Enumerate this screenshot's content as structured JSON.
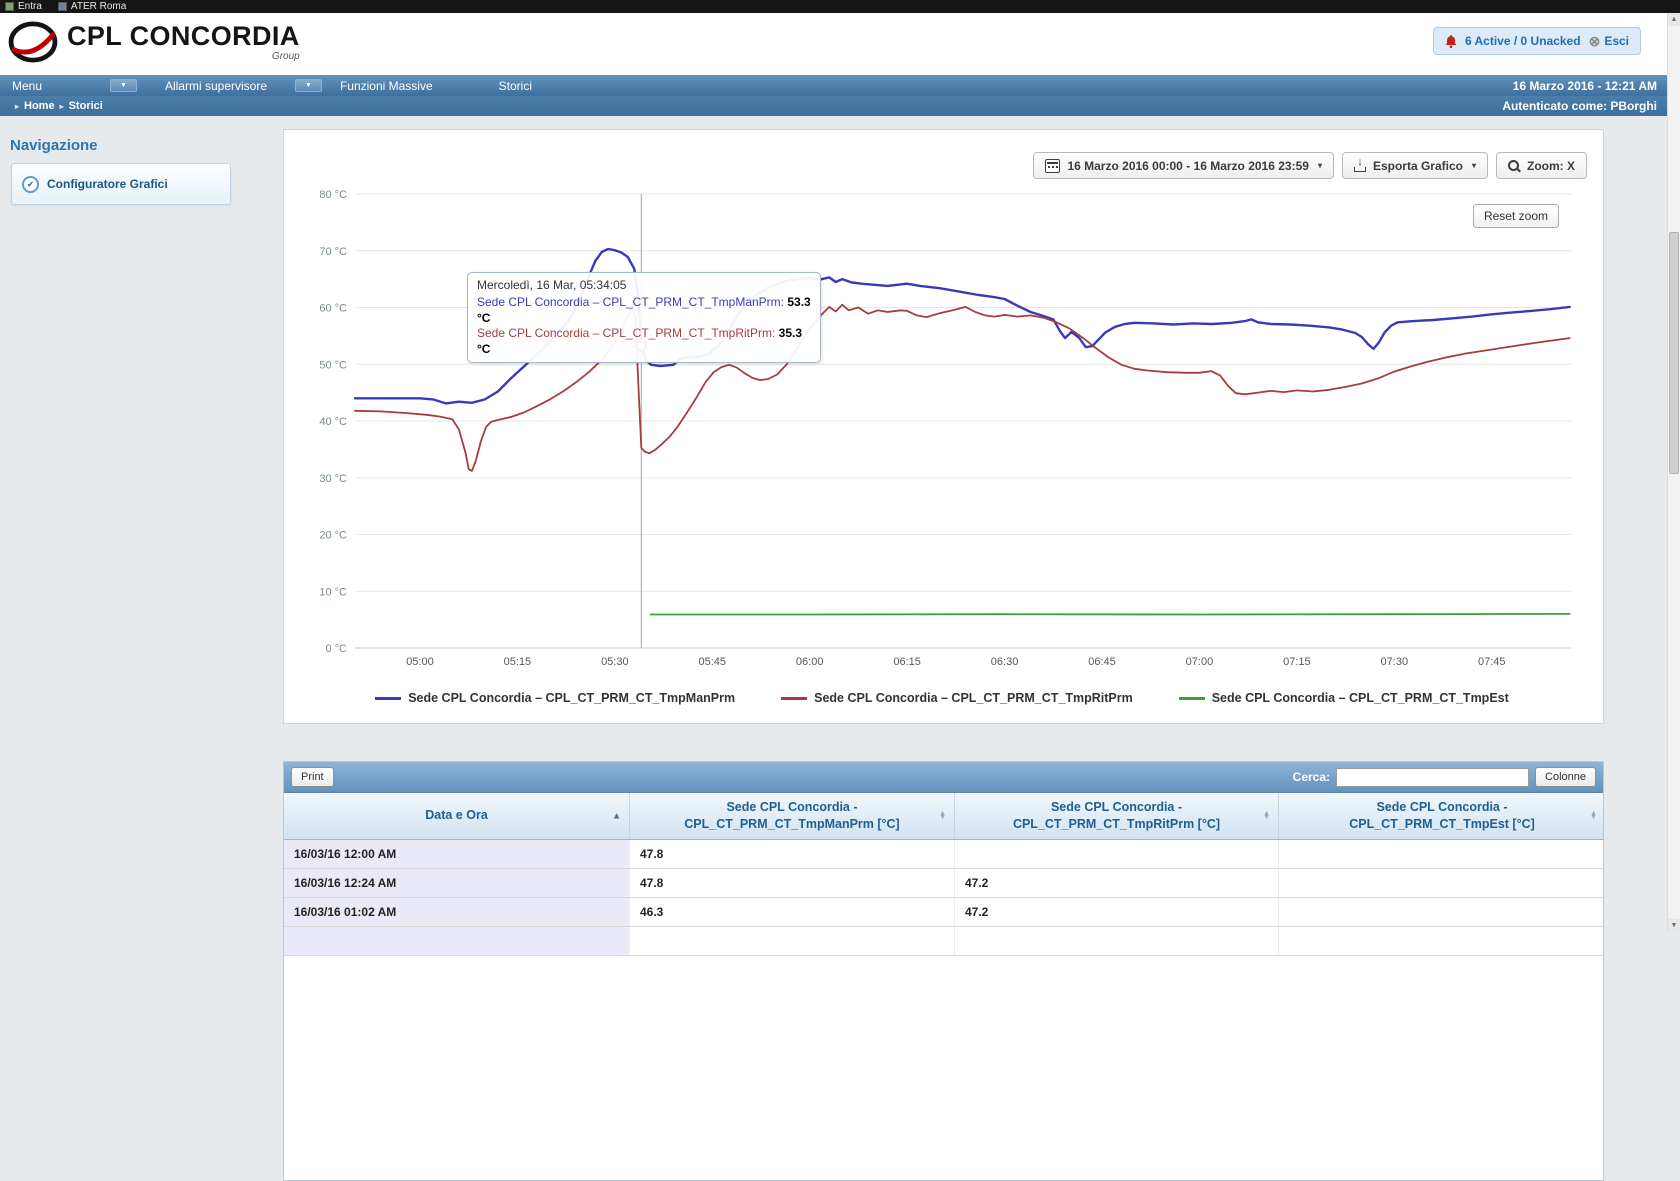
{
  "colors": {
    "accent_blue": "#1f6db5",
    "navbar_blue": "#406f9d",
    "series_blue": "#3a3ab8",
    "series_red": "#a83c3c",
    "series_green": "#3c9e3c",
    "sorted_column_bg": "#e9e9f7"
  },
  "bookmark_bar": {
    "items": [
      {
        "label": "Entra"
      },
      {
        "label": "ATER Roma"
      }
    ]
  },
  "header": {
    "brand": "CPL CONCORDIA",
    "brand_sub": "Group",
    "alarm_status": "6 Active / 0 Unacked",
    "logout_label": "Esci"
  },
  "navbar": {
    "items": [
      {
        "label": "Menu",
        "dropdown": true
      },
      {
        "label": "Allarmi supervisore",
        "dropdown": true
      },
      {
        "label": "Funzioni Massive",
        "dropdown": false
      },
      {
        "label": "Storici",
        "dropdown": false
      }
    ],
    "datetime": "16 Marzo 2016 - 12:21 AM"
  },
  "breadcrumb": {
    "items": [
      "Home",
      "Storici"
    ],
    "auth_text": "Autenticato come: PBorghi"
  },
  "sidebar": {
    "title": "Navigazione",
    "items": [
      {
        "label": "Configuratore Grafici"
      }
    ]
  },
  "chart_panel": {
    "date_range": "16 Marzo 2016 00:00 - 16 Marzo 2016 23:59",
    "export_label": "Esporta Grafico",
    "zoom_label": "Zoom: X",
    "reset_zoom_label": "Reset zoom",
    "tooltip": {
      "title": "Mercoledì, 16 Mar, 05:34:05",
      "rows": [
        {
          "name": "Sede CPL Concordia – CPL_CT_PRM_CT_TmpManPrm",
          "value": "53.3 °C",
          "color": "#3a3ab8"
        },
        {
          "name": "Sede CPL Concordia – CPL_CT_PRM_CT_TmpRitPrm",
          "value": "35.3 °C",
          "color": "#a83c3c"
        }
      ]
    }
  },
  "chart_data": {
    "type": "line",
    "ylabel": "°C",
    "ylim": [
      0,
      80
    ],
    "ytick_step": 10,
    "ytick_suffix": " °C",
    "grid": "horizontal",
    "legend_position": "bottom",
    "x_time_range": [
      "04:50",
      "07:57"
    ],
    "xticks": [
      {
        "t": 300,
        "label": "05:00"
      },
      {
        "t": 315,
        "label": "05:15"
      },
      {
        "t": 330,
        "label": "05:30"
      },
      {
        "t": 345,
        "label": "05:45"
      },
      {
        "t": 360,
        "label": "06:00"
      },
      {
        "t": 375,
        "label": "06:15"
      },
      {
        "t": 390,
        "label": "06:30"
      },
      {
        "t": 405,
        "label": "06:45"
      },
      {
        "t": 420,
        "label": "07:00"
      },
      {
        "t": 435,
        "label": "07:15"
      },
      {
        "t": 450,
        "label": "07:30"
      },
      {
        "t": 465,
        "label": "07:45"
      }
    ],
    "crosshair": {
      "t": 334.07,
      "time": "05:34:05"
    },
    "marker": {
      "series": 0,
      "t": 334.07,
      "v": 53.3
    },
    "series": [
      {
        "name": "Sede CPL Concordia – CPL_CT_PRM_CT_TmpManPrm",
        "color": "#3a3ab8",
        "width": 2.4,
        "points": [
          [
            290,
            44.0
          ],
          [
            295,
            44.0
          ],
          [
            300,
            44.0
          ],
          [
            302,
            43.8
          ],
          [
            304,
            43.1
          ],
          [
            306,
            43.4
          ],
          [
            308,
            43.2
          ],
          [
            310,
            43.8
          ],
          [
            312,
            45.2
          ],
          [
            314,
            47.5
          ],
          [
            316,
            49.6
          ],
          [
            318,
            51.7
          ],
          [
            320,
            54.0
          ],
          [
            322,
            56.4
          ],
          [
            323,
            58.0
          ],
          [
            324,
            60.0
          ],
          [
            325,
            62.5
          ],
          [
            326,
            65.5
          ],
          [
            327,
            68.2
          ],
          [
            328,
            69.8
          ],
          [
            329,
            70.3
          ],
          [
            330,
            70.1
          ],
          [
            331,
            69.7
          ],
          [
            332,
            68.9
          ],
          [
            333,
            66.8
          ],
          [
            333.6,
            62.0
          ],
          [
            334.07,
            53.3
          ],
          [
            334.8,
            50.6
          ],
          [
            335.6,
            49.9
          ],
          [
            337,
            49.7
          ],
          [
            339,
            49.9
          ],
          [
            340,
            50.9
          ],
          [
            341,
            51.2
          ],
          [
            343,
            51.3
          ],
          [
            344.5,
            51.8
          ],
          [
            346,
            53.4
          ],
          [
            347.5,
            56.0
          ],
          [
            349,
            58.8
          ],
          [
            350.5,
            60.9
          ],
          [
            352,
            62.4
          ],
          [
            353.5,
            63.4
          ],
          [
            355,
            64.1
          ],
          [
            356.5,
            64.7
          ],
          [
            358,
            65.0
          ],
          [
            360,
            65.2
          ],
          [
            361.5,
            64.9
          ],
          [
            363,
            65.3
          ],
          [
            364,
            64.5
          ],
          [
            365,
            65.0
          ],
          [
            366.5,
            64.4
          ],
          [
            368,
            64.2
          ],
          [
            370,
            64.0
          ],
          [
            372,
            63.8
          ],
          [
            375,
            64.2
          ],
          [
            377,
            63.8
          ],
          [
            380,
            63.4
          ],
          [
            383,
            62.8
          ],
          [
            386,
            62.2
          ],
          [
            388,
            61.9
          ],
          [
            390,
            61.5
          ],
          [
            392,
            60.3
          ],
          [
            394,
            59.2
          ],
          [
            396,
            58.5
          ],
          [
            397.5,
            57.9
          ],
          [
            398.5,
            55.9
          ],
          [
            399.3,
            54.6
          ],
          [
            400.3,
            55.7
          ],
          [
            401.5,
            54.6
          ],
          [
            402.5,
            53.0
          ],
          [
            403.5,
            53.2
          ],
          [
            404.5,
            54.4
          ],
          [
            405.5,
            55.6
          ],
          [
            407,
            56.6
          ],
          [
            408.5,
            57.1
          ],
          [
            410,
            57.3
          ],
          [
            413,
            57.2
          ],
          [
            416,
            57.0
          ],
          [
            419,
            57.2
          ],
          [
            422,
            57.1
          ],
          [
            425,
            57.3
          ],
          [
            427,
            57.6
          ],
          [
            428,
            57.9
          ],
          [
            429,
            57.4
          ],
          [
            431,
            57.1
          ],
          [
            434,
            57.0
          ],
          [
            437,
            56.8
          ],
          [
            440,
            56.5
          ],
          [
            442,
            56.1
          ],
          [
            444,
            55.5
          ],
          [
            445,
            54.8
          ],
          [
            446,
            53.5
          ],
          [
            446.8,
            52.7
          ],
          [
            447.6,
            53.8
          ],
          [
            448.5,
            55.6
          ],
          [
            449.5,
            56.8
          ],
          [
            450.5,
            57.4
          ],
          [
            453,
            57.6
          ],
          [
            456,
            57.8
          ],
          [
            459,
            58.1
          ],
          [
            462,
            58.4
          ],
          [
            465,
            58.8
          ],
          [
            468,
            59.1
          ],
          [
            471,
            59.4
          ],
          [
            474,
            59.7
          ],
          [
            477,
            60.1
          ]
        ]
      },
      {
        "name": "Sede CPL Concordia – CPL_CT_PRM_CT_TmpRitPrm",
        "color": "#a83c3c",
        "width": 1.8,
        "points": [
          [
            290,
            41.8
          ],
          [
            294,
            41.7
          ],
          [
            298,
            41.4
          ],
          [
            301,
            41.1
          ],
          [
            303,
            40.8
          ],
          [
            305,
            40.3
          ],
          [
            306,
            38.5
          ],
          [
            307,
            34.5
          ],
          [
            307.5,
            31.5
          ],
          [
            308,
            31.2
          ],
          [
            308.6,
            33.0
          ],
          [
            309.4,
            36.5
          ],
          [
            310.2,
            39.0
          ],
          [
            311,
            39.9
          ],
          [
            312.5,
            40.3
          ],
          [
            314,
            40.7
          ],
          [
            316,
            41.5
          ],
          [
            318,
            42.6
          ],
          [
            320,
            43.8
          ],
          [
            322,
            45.2
          ],
          [
            324,
            46.8
          ],
          [
            326,
            48.6
          ],
          [
            328,
            50.8
          ],
          [
            329.5,
            52.8
          ],
          [
            331,
            55.8
          ],
          [
            332,
            58.5
          ],
          [
            332.8,
            60.3
          ],
          [
            333.2,
            58.0
          ],
          [
            333.6,
            47.0
          ],
          [
            334.07,
            35.3
          ],
          [
            334.6,
            34.6
          ],
          [
            335.3,
            34.3
          ],
          [
            336.2,
            34.9
          ],
          [
            337.2,
            35.9
          ],
          [
            338.4,
            37.2
          ],
          [
            339.6,
            38.9
          ],
          [
            341,
            41.3
          ],
          [
            342.5,
            44.0
          ],
          [
            344,
            46.9
          ],
          [
            345.2,
            48.6
          ],
          [
            346.4,
            49.5
          ],
          [
            347.6,
            49.9
          ],
          [
            348.8,
            49.4
          ],
          [
            350,
            48.4
          ],
          [
            351.2,
            47.6
          ],
          [
            352.4,
            47.2
          ],
          [
            353.6,
            47.4
          ],
          [
            355,
            48.2
          ],
          [
            356.4,
            49.9
          ],
          [
            357.8,
            52.2
          ],
          [
            359.2,
            54.8
          ],
          [
            360.5,
            56.9
          ],
          [
            361.8,
            58.7
          ],
          [
            363,
            60.1
          ],
          [
            364,
            59.3
          ],
          [
            365,
            60.5
          ],
          [
            366,
            59.5
          ],
          [
            367.5,
            60.0
          ],
          [
            369,
            58.9
          ],
          [
            370.5,
            59.5
          ],
          [
            372,
            59.2
          ],
          [
            374,
            59.5
          ],
          [
            375,
            59.4
          ],
          [
            376.5,
            58.6
          ],
          [
            378,
            58.3
          ],
          [
            380,
            59.0
          ],
          [
            382,
            59.5
          ],
          [
            384,
            60.1
          ],
          [
            385.5,
            59.2
          ],
          [
            387,
            58.6
          ],
          [
            388.5,
            58.4
          ],
          [
            390,
            58.7
          ],
          [
            392,
            58.4
          ],
          [
            394,
            58.6
          ],
          [
            396,
            58.2
          ],
          [
            398,
            57.4
          ],
          [
            400,
            56.3
          ],
          [
            402,
            54.7
          ],
          [
            404,
            52.9
          ],
          [
            406,
            51.2
          ],
          [
            408,
            49.9
          ],
          [
            410,
            49.2
          ],
          [
            412,
            48.9
          ],
          [
            415,
            48.6
          ],
          [
            418,
            48.5
          ],
          [
            420,
            48.5
          ],
          [
            421.8,
            48.8
          ],
          [
            423.2,
            48.0
          ],
          [
            424.4,
            46.2
          ],
          [
            425.6,
            44.9
          ],
          [
            427,
            44.7
          ],
          [
            429,
            45.0
          ],
          [
            431,
            45.3
          ],
          [
            433,
            45.1
          ],
          [
            435,
            45.4
          ],
          [
            437.5,
            45.2
          ],
          [
            440,
            45.5
          ],
          [
            442.5,
            46.0
          ],
          [
            445,
            46.6
          ],
          [
            447.5,
            47.5
          ],
          [
            450,
            48.7
          ],
          [
            452.5,
            49.6
          ],
          [
            455,
            50.4
          ],
          [
            458,
            51.2
          ],
          [
            461,
            51.9
          ],
          [
            465,
            52.6
          ],
          [
            469,
            53.3
          ],
          [
            473,
            54.0
          ],
          [
            477,
            54.6
          ]
        ]
      },
      {
        "name": "Sede CPL Concordia – CPL_CT_PRM_CT_TmpEst",
        "color": "#3c9e3c",
        "width": 1.8,
        "points": [
          [
            335.5,
            5.9
          ],
          [
            360,
            5.9
          ],
          [
            390,
            5.95
          ],
          [
            420,
            5.9
          ],
          [
            450,
            5.95
          ],
          [
            477,
            6.0
          ]
        ]
      }
    ]
  },
  "table_panel": {
    "print_label": "Print",
    "search_label": "Cerca:",
    "search_value": "",
    "columns_label": "Colonne",
    "columns": [
      {
        "label": "Data e Ora",
        "sorted": "asc"
      },
      {
        "label": "Sede CPL Concordia -\nCPL_CT_PRM_CT_TmpManPrm [°C]",
        "sorted": "none"
      },
      {
        "label": "Sede CPL Concordia -\nCPL_CT_PRM_CT_TmpRitPrm [°C]",
        "sorted": "none"
      },
      {
        "label": "Sede CPL Concordia -\nCPL_CT_PRM_CT_TmpEst [°C]",
        "sorted": "none"
      }
    ],
    "rows": [
      [
        "16/03/16 12:00 AM",
        "47.8",
        "",
        ""
      ],
      [
        "16/03/16 12:24 AM",
        "47.8",
        "47.2",
        ""
      ],
      [
        "16/03/16 01:02 AM",
        "46.3",
        "47.2",
        ""
      ],
      [
        "",
        "",
        "",
        ""
      ]
    ]
  }
}
